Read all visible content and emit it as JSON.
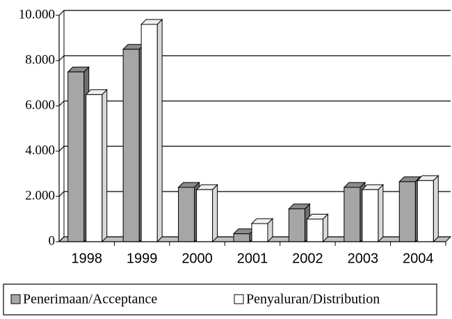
{
  "chart_data": {
    "type": "bar3d",
    "categories": [
      "1998",
      "1999",
      "2000",
      "2001",
      "2002",
      "2003",
      "2004"
    ],
    "series": [
      {
        "name": "Penerimaan/Acceptance",
        "color": "#a6a6a6",
        "values": [
          7500,
          8500,
          2400,
          350,
          1450,
          2400,
          2650
        ]
      },
      {
        "name": "Penyaluran/Distribution",
        "color": "#ffffff",
        "values": [
          6500,
          9600,
          2300,
          800,
          1000,
          2300,
          2700
        ]
      }
    ],
    "ylim": [
      0,
      10000
    ],
    "yticks": [
      0,
      {
        "value": 2000,
        "label": "2.000"
      },
      {
        "value": 4000,
        "label": "4.000"
      },
      {
        "value": 6000,
        "label": "6.000"
      },
      {
        "value": 8000,
        "label": "8.000"
      },
      {
        "value": 10000,
        "label": "10.000"
      }
    ],
    "grid": true,
    "legend": "bottom"
  }
}
